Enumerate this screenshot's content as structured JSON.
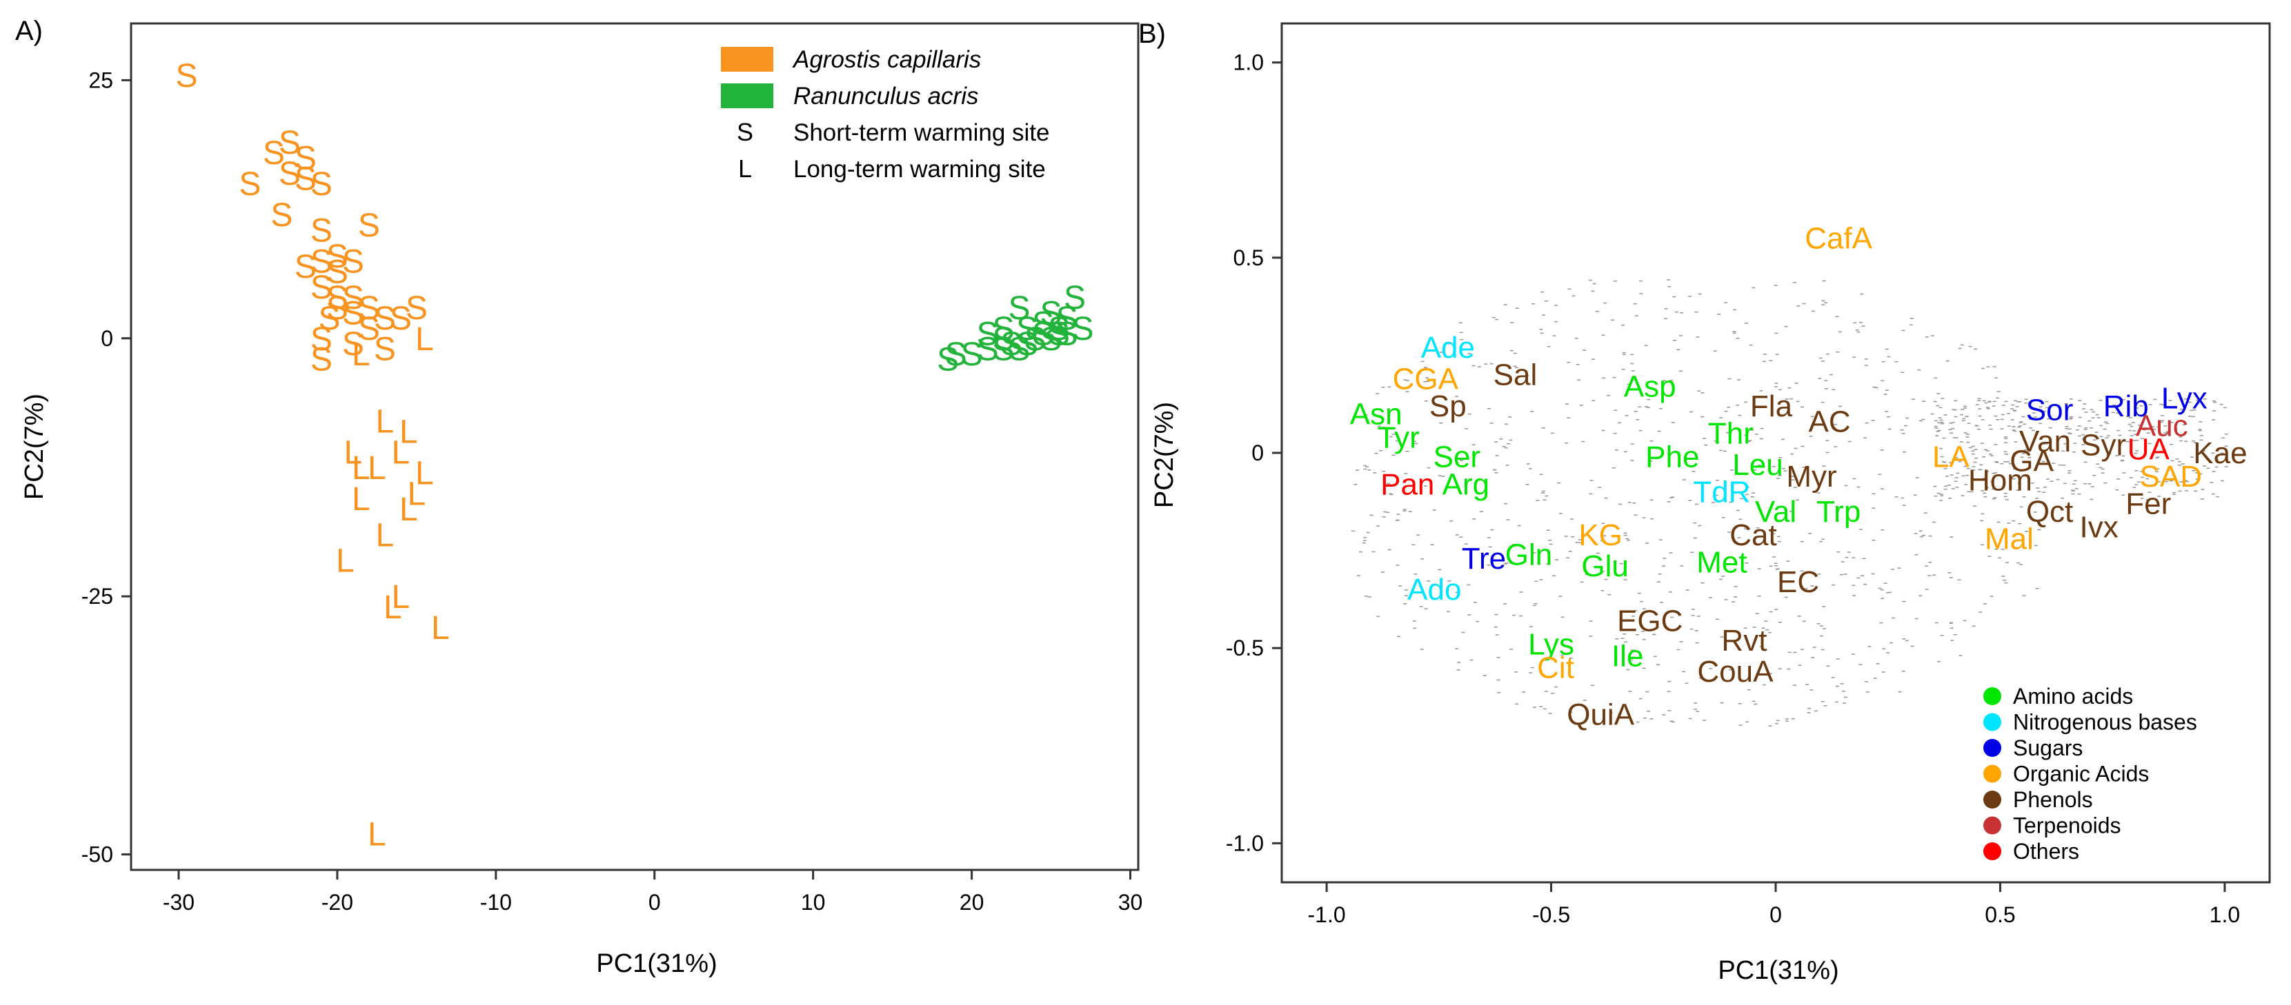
{
  "colors": {
    "agrostis": "#F7931E",
    "ranunculus": "#22B33A",
    "amino": "#00E600",
    "nitrogenous": "#00E5FF",
    "sugars": "#0000E6",
    "organic": "#FFA500",
    "phenols": "#6B3A10",
    "terpenoids": "#C83232",
    "others": "#FF0000",
    "axis": "#333333",
    "text": "#000000"
  },
  "chart_data": [
    {
      "panel_label": "A)",
      "type": "scatter",
      "xlabel": "PC1(31%)",
      "ylabel": "PC2(7%)",
      "xlim": [
        -33,
        30.5
      ],
      "ylim": [
        -51.5,
        30.5
      ],
      "xticks": [
        -30,
        -20,
        -10,
        0,
        10,
        20,
        30
      ],
      "yticks": [
        25,
        0,
        -25,
        -50
      ],
      "legend": {
        "position": "top-right",
        "entries": [
          {
            "kind": "swatch",
            "color_key": "agrostis",
            "label": "Agrostis capillaris",
            "italic": true
          },
          {
            "kind": "swatch",
            "color_key": "ranunculus",
            "label": "Ranunculus acris",
            "italic": true
          },
          {
            "kind": "glyph",
            "symbol": "S",
            "label": "Short-term warming site",
            "italic": false
          },
          {
            "kind": "glyph",
            "symbol": "L",
            "label": "Long-term warming site",
            "italic": false
          }
        ]
      },
      "series": [
        {
          "name": "Agrostis capillaris",
          "color_key": "agrostis",
          "points": [
            [
              -29.5,
              25.5,
              "S"
            ],
            [
              -23,
              19,
              "S"
            ],
            [
              -24,
              18,
              "S"
            ],
            [
              -22,
              17.5,
              "S"
            ],
            [
              -23,
              16,
              "S"
            ],
            [
              -22,
              15.5,
              "S"
            ],
            [
              -21,
              15,
              "S"
            ],
            [
              -25.5,
              15,
              "S"
            ],
            [
              -23.5,
              12,
              "S"
            ],
            [
              -18,
              11,
              "S"
            ],
            [
              -21,
              10.5,
              "S"
            ],
            [
              -21,
              7.5,
              "S"
            ],
            [
              -20,
              8,
              "S"
            ],
            [
              -19,
              7.5,
              "S"
            ],
            [
              -20,
              6.5,
              "S"
            ],
            [
              -22,
              7,
              "S"
            ],
            [
              -21,
              5,
              "S"
            ],
            [
              -20,
              4,
              "S"
            ],
            [
              -19,
              4,
              "S"
            ],
            [
              -20,
              3,
              "S"
            ],
            [
              -19,
              2.5,
              "S"
            ],
            [
              -18,
              3,
              "S"
            ],
            [
              -17,
              2,
              "S"
            ],
            [
              -16,
              2,
              "S"
            ],
            [
              -15,
              3,
              "S"
            ],
            [
              -18,
              1,
              "S"
            ],
            [
              -20.5,
              2,
              "S"
            ],
            [
              -21,
              0,
              "S"
            ],
            [
              -19,
              -0.5,
              "S"
            ],
            [
              -21,
              -2,
              "S"
            ],
            [
              -17,
              -1,
              "S"
            ],
            [
              -18.5,
              -1.5,
              "L"
            ],
            [
              -14.5,
              0,
              "L"
            ],
            [
              -17,
              -8,
              "L"
            ],
            [
              -15.5,
              -9,
              "L"
            ],
            [
              -19,
              -11,
              "L"
            ],
            [
              -18.5,
              -12.5,
              "L"
            ],
            [
              -16,
              -11,
              "L"
            ],
            [
              -17.5,
              -12.5,
              "L"
            ],
            [
              -14.5,
              -13,
              "L"
            ],
            [
              -15,
              -15,
              "L"
            ],
            [
              -18.5,
              -15.5,
              "L"
            ],
            [
              -15.5,
              -16.5,
              "L"
            ],
            [
              -17,
              -19,
              "L"
            ],
            [
              -19.5,
              -21.5,
              "L"
            ],
            [
              -16,
              -25,
              "L"
            ],
            [
              -16.5,
              -26,
              "L"
            ],
            [
              -13.5,
              -28,
              "L"
            ],
            [
              -17.5,
              -48,
              "L"
            ]
          ]
        },
        {
          "name": "Ranunculus acris",
          "color_key": "ranunculus",
          "points": [
            [
              26.5,
              4,
              "S"
            ],
            [
              23,
              3,
              "S"
            ],
            [
              25,
              2.5,
              "S"
            ],
            [
              26,
              2,
              "S"
            ],
            [
              24.5,
              1.5,
              "S"
            ],
            [
              25.5,
              1,
              "S"
            ],
            [
              27,
              1,
              "S"
            ],
            [
              22,
              1,
              "S"
            ],
            [
              23.5,
              1,
              "S"
            ],
            [
              21,
              0.5,
              "S"
            ],
            [
              22,
              0,
              "S"
            ],
            [
              24,
              0,
              "S"
            ],
            [
              25,
              0,
              "S"
            ],
            [
              26,
              0.5,
              "S"
            ],
            [
              22.5,
              -0.5,
              "S"
            ],
            [
              23.5,
              -0.5,
              "S"
            ],
            [
              21,
              -1,
              "S"
            ],
            [
              22,
              -1,
              "S"
            ],
            [
              20,
              -1.5,
              "S"
            ],
            [
              19,
              -1.5,
              "S"
            ],
            [
              18.5,
              -2,
              "S"
            ],
            [
              23,
              -1,
              "S"
            ],
            [
              24.5,
              0.5,
              "S"
            ],
            [
              25.5,
              0.5,
              "S"
            ]
          ]
        }
      ]
    },
    {
      "panel_label": "B)",
      "type": "scatter",
      "xlabel": "PC1(31%)",
      "ylabel": "PC2(7%)",
      "xlim": [
        -1.1,
        1.1
      ],
      "ylim": [
        -1.1,
        1.1
      ],
      "xticks": [
        "-1.0",
        "-0.5",
        "0",
        "0.5",
        "1.0"
      ],
      "yticks": [
        "1.0",
        "0.5",
        "0",
        "-0.5",
        "-1.0"
      ],
      "legend": {
        "position": "bottom-right",
        "entries": [
          {
            "color_key": "amino",
            "label": "Amino acids"
          },
          {
            "color_key": "nitrogenous",
            "label": "Nitrogenous bases"
          },
          {
            "color_key": "sugars",
            "label": "Sugars"
          },
          {
            "color_key": "organic",
            "label": "Organic Acids"
          },
          {
            "color_key": "phenols",
            "label": "Phenols"
          },
          {
            "color_key": "terpenoids",
            "label": "Terpenoids"
          },
          {
            "color_key": "others",
            "label": "Others"
          }
        ]
      },
      "labels": [
        {
          "t": "CafA",
          "x": 0.14,
          "y": 0.55,
          "c": "organic"
        },
        {
          "t": "Ade",
          "x": -0.73,
          "y": 0.27,
          "c": "nitrogenous"
        },
        {
          "t": "CGA",
          "x": -0.78,
          "y": 0.19,
          "c": "organic"
        },
        {
          "t": "Sal",
          "x": -0.58,
          "y": 0.2,
          "c": "phenols"
        },
        {
          "t": "Sp",
          "x": -0.73,
          "y": 0.12,
          "c": "phenols"
        },
        {
          "t": "Asp",
          "x": -0.28,
          "y": 0.17,
          "c": "amino"
        },
        {
          "t": "Fla",
          "x": -0.01,
          "y": 0.12,
          "c": "phenols"
        },
        {
          "t": "AC",
          "x": 0.12,
          "y": 0.08,
          "c": "phenols"
        },
        {
          "t": "Asn",
          "x": -0.89,
          "y": 0.1,
          "c": "amino"
        },
        {
          "t": "Tyr",
          "x": -0.84,
          "y": 0.04,
          "c": "amino"
        },
        {
          "t": "Thr",
          "x": -0.1,
          "y": 0.05,
          "c": "amino"
        },
        {
          "t": "Phe",
          "x": -0.23,
          "y": -0.01,
          "c": "amino"
        },
        {
          "t": "Ser",
          "x": -0.71,
          "y": -0.01,
          "c": "amino"
        },
        {
          "t": "Leu",
          "x": -0.04,
          "y": -0.03,
          "c": "amino"
        },
        {
          "t": "Myr",
          "x": 0.08,
          "y": -0.06,
          "c": "phenols"
        },
        {
          "t": "Pan",
          "x": -0.82,
          "y": -0.08,
          "c": "others"
        },
        {
          "t": "Arg",
          "x": -0.69,
          "y": -0.08,
          "c": "amino"
        },
        {
          "t": "TdR",
          "x": -0.12,
          "y": -0.1,
          "c": "nitrogenous"
        },
        {
          "t": "Val",
          "x": 0.0,
          "y": -0.15,
          "c": "amino"
        },
        {
          "t": "Trp",
          "x": 0.14,
          "y": -0.15,
          "c": "amino"
        },
        {
          "t": "Cat",
          "x": -0.05,
          "y": -0.21,
          "c": "phenols"
        },
        {
          "t": "KG",
          "x": -0.39,
          "y": -0.21,
          "c": "organic"
        },
        {
          "t": "Tre",
          "x": -0.65,
          "y": -0.27,
          "c": "sugars"
        },
        {
          "t": "Gln",
          "x": -0.55,
          "y": -0.26,
          "c": "amino"
        },
        {
          "t": "Glu",
          "x": -0.38,
          "y": -0.29,
          "c": "amino"
        },
        {
          "t": "Met",
          "x": -0.12,
          "y": -0.28,
          "c": "amino"
        },
        {
          "t": "EC",
          "x": 0.05,
          "y": -0.33,
          "c": "phenols"
        },
        {
          "t": "Ado",
          "x": -0.76,
          "y": -0.35,
          "c": "nitrogenous"
        },
        {
          "t": "EGC",
          "x": -0.28,
          "y": -0.43,
          "c": "phenols"
        },
        {
          "t": "Rvt",
          "x": -0.07,
          "y": -0.48,
          "c": "phenols"
        },
        {
          "t": "Lys",
          "x": -0.5,
          "y": -0.49,
          "c": "amino"
        },
        {
          "t": "Ile",
          "x": -0.33,
          "y": -0.52,
          "c": "amino"
        },
        {
          "t": "Cit",
          "x": -0.49,
          "y": -0.55,
          "c": "organic"
        },
        {
          "t": "CouA",
          "x": -0.09,
          "y": -0.56,
          "c": "phenols"
        },
        {
          "t": "QuiA",
          "x": -0.39,
          "y": -0.67,
          "c": "phenols"
        },
        {
          "t": "Sor",
          "x": 0.61,
          "y": 0.11,
          "c": "sugars"
        },
        {
          "t": "Rib",
          "x": 0.78,
          "y": 0.12,
          "c": "sugars"
        },
        {
          "t": "Lyx",
          "x": 0.91,
          "y": 0.14,
          "c": "sugars"
        },
        {
          "t": "Auc",
          "x": 0.86,
          "y": 0.07,
          "c": "terpenoids"
        },
        {
          "t": "Van",
          "x": 0.6,
          "y": 0.03,
          "c": "phenols"
        },
        {
          "t": "Syr",
          "x": 0.73,
          "y": 0.02,
          "c": "phenols"
        },
        {
          "t": "UA",
          "x": 0.83,
          "y": 0.01,
          "c": "others"
        },
        {
          "t": "Kae",
          "x": 0.99,
          "y": 0.0,
          "c": "phenols"
        },
        {
          "t": "LA",
          "x": 0.39,
          "y": -0.01,
          "c": "organic"
        },
        {
          "t": "GA",
          "x": 0.57,
          "y": -0.02,
          "c": "phenols"
        },
        {
          "t": "SAD",
          "x": 0.88,
          "y": -0.06,
          "c": "organic"
        },
        {
          "t": "Hom",
          "x": 0.5,
          "y": -0.07,
          "c": "phenols"
        },
        {
          "t": "Fer",
          "x": 0.83,
          "y": -0.13,
          "c": "phenols"
        },
        {
          "t": "Qct",
          "x": 0.61,
          "y": -0.15,
          "c": "phenols"
        },
        {
          "t": "Ivx",
          "x": 0.72,
          "y": -0.19,
          "c": "phenols"
        },
        {
          "t": "Mal",
          "x": 0.52,
          "y": -0.22,
          "c": "organic"
        }
      ]
    }
  ]
}
